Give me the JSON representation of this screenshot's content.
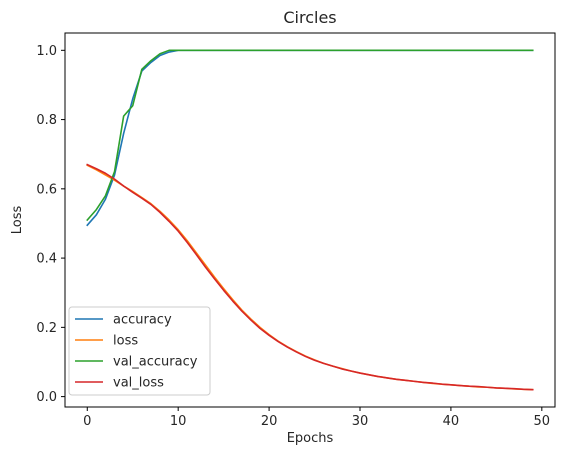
{
  "chart_data": {
    "type": "line",
    "title": "Circles",
    "xlabel": "Epochs",
    "ylabel": "Loss",
    "xlim": [
      -2.45,
      51.45
    ],
    "ylim": [
      -0.03,
      1.05
    ],
    "xticks": [
      0,
      10,
      20,
      30,
      40,
      50
    ],
    "yticks": [
      0.0,
      0.2,
      0.4,
      0.6,
      0.8,
      1.0
    ],
    "xtick_labels": [
      "0",
      "10",
      "20",
      "30",
      "40",
      "50"
    ],
    "ytick_labels": [
      "0.0",
      "0.2",
      "0.4",
      "0.6",
      "0.8",
      "1.0"
    ],
    "grid": false,
    "legend_position": "lower-left",
    "x": [
      0,
      1,
      2,
      3,
      4,
      5,
      6,
      7,
      8,
      9,
      10,
      11,
      12,
      13,
      14,
      15,
      16,
      17,
      18,
      19,
      20,
      21,
      22,
      23,
      24,
      25,
      26,
      27,
      28,
      29,
      30,
      31,
      32,
      33,
      34,
      35,
      36,
      37,
      38,
      39,
      40,
      41,
      42,
      43,
      44,
      45,
      46,
      47,
      48,
      49
    ],
    "series": [
      {
        "name": "accuracy",
        "color": "#1f77b4",
        "values": [
          0.495,
          0.525,
          0.57,
          0.64,
          0.76,
          0.86,
          0.94,
          0.965,
          0.985,
          0.995,
          1.0,
          1.0,
          1.0,
          1.0,
          1.0,
          1.0,
          1.0,
          1.0,
          1.0,
          1.0,
          1.0,
          1.0,
          1.0,
          1.0,
          1.0,
          1.0,
          1.0,
          1.0,
          1.0,
          1.0,
          1.0,
          1.0,
          1.0,
          1.0,
          1.0,
          1.0,
          1.0,
          1.0,
          1.0,
          1.0,
          1.0,
          1.0,
          1.0,
          1.0,
          1.0,
          1.0,
          1.0,
          1.0,
          1.0,
          1.0
        ]
      },
      {
        "name": "loss",
        "color": "#ff7f0e",
        "values": [
          0.668,
          0.655,
          0.64,
          0.625,
          0.608,
          0.592,
          0.575,
          0.557,
          0.535,
          0.51,
          0.482,
          0.45,
          0.415,
          0.38,
          0.345,
          0.312,
          0.28,
          0.25,
          0.224,
          0.2,
          0.179,
          0.16,
          0.144,
          0.13,
          0.117,
          0.106,
          0.096,
          0.088,
          0.081,
          0.074,
          0.068,
          0.063,
          0.058,
          0.054,
          0.05,
          0.047,
          0.044,
          0.041,
          0.038,
          0.036,
          0.034,
          0.032,
          0.03,
          0.028,
          0.027,
          0.025,
          0.024,
          0.022,
          0.021,
          0.02
        ]
      },
      {
        "name": "val_accuracy",
        "color": "#2ca02c",
        "values": [
          0.51,
          0.54,
          0.58,
          0.65,
          0.81,
          0.84,
          0.945,
          0.97,
          0.99,
          1.0,
          1.0,
          1.0,
          1.0,
          1.0,
          1.0,
          1.0,
          1.0,
          1.0,
          1.0,
          1.0,
          1.0,
          1.0,
          1.0,
          1.0,
          1.0,
          1.0,
          1.0,
          1.0,
          1.0,
          1.0,
          1.0,
          1.0,
          1.0,
          1.0,
          1.0,
          1.0,
          1.0,
          1.0,
          1.0,
          1.0,
          1.0,
          1.0,
          1.0,
          1.0,
          1.0,
          1.0,
          1.0,
          1.0,
          1.0,
          1.0
        ]
      },
      {
        "name": "val_loss",
        "color": "#d62728",
        "values": [
          0.67,
          0.658,
          0.645,
          0.628,
          0.608,
          0.59,
          0.573,
          0.555,
          0.532,
          0.506,
          0.478,
          0.445,
          0.41,
          0.374,
          0.34,
          0.307,
          0.276,
          0.247,
          0.221,
          0.197,
          0.177,
          0.159,
          0.143,
          0.129,
          0.116,
          0.105,
          0.096,
          0.088,
          0.08,
          0.074,
          0.068,
          0.063,
          0.058,
          0.054,
          0.05,
          0.047,
          0.044,
          0.041,
          0.039,
          0.036,
          0.034,
          0.032,
          0.03,
          0.029,
          0.027,
          0.025,
          0.024,
          0.023,
          0.021,
          0.02
        ]
      }
    ]
  }
}
